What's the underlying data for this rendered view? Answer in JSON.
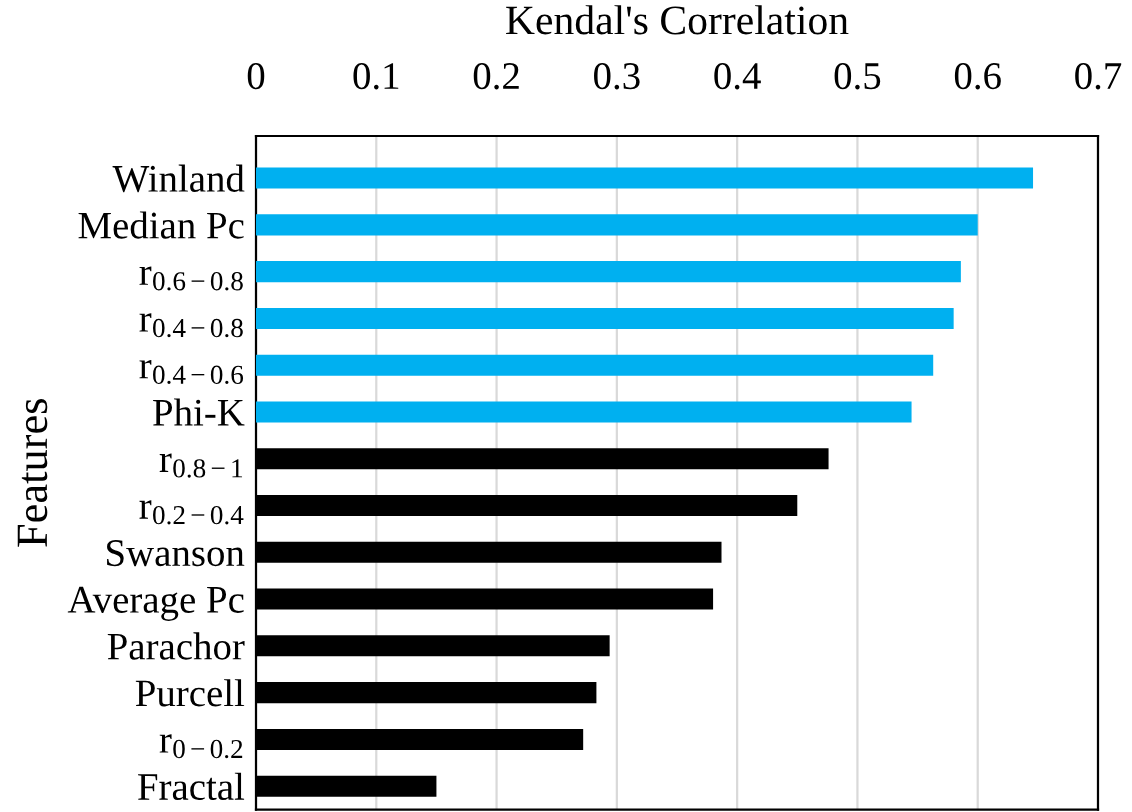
{
  "chart_data": {
    "type": "bar",
    "orientation": "horizontal",
    "xlabel": "Kendal's Correlation",
    "ylabel": "Features",
    "categories": [
      "Winland",
      "Median Pc",
      "r$_{0.6−0.8}$",
      "r$_{0.4−0.8}$",
      "r$_{0.4−0.6}$",
      "Phi-K",
      "r$_{0.8−1}$",
      "r$_{0.2−0.4}$",
      "Swanson",
      "Average Pc",
      "Parachor",
      "Purcell",
      "r$_{0−0.2}$",
      "Fractal"
    ],
    "values": [
      0.646,
      0.6,
      0.586,
      0.58,
      0.563,
      0.545,
      0.476,
      0.45,
      0.387,
      0.38,
      0.294,
      0.283,
      0.272,
      0.15
    ],
    "colors": [
      "#00b0f0",
      "#00b0f0",
      "#00b0f0",
      "#00b0f0",
      "#00b0f0",
      "#00b0f0",
      "#000000",
      "#000000",
      "#000000",
      "#000000",
      "#000000",
      "#000000",
      "#000000",
      "#000000"
    ],
    "xlim": [
      0,
      0.7
    ],
    "xticks": [
      0,
      0.1,
      0.2,
      0.3,
      0.4,
      0.5,
      0.6,
      0.7
    ],
    "grid": "x",
    "legend": false
  }
}
